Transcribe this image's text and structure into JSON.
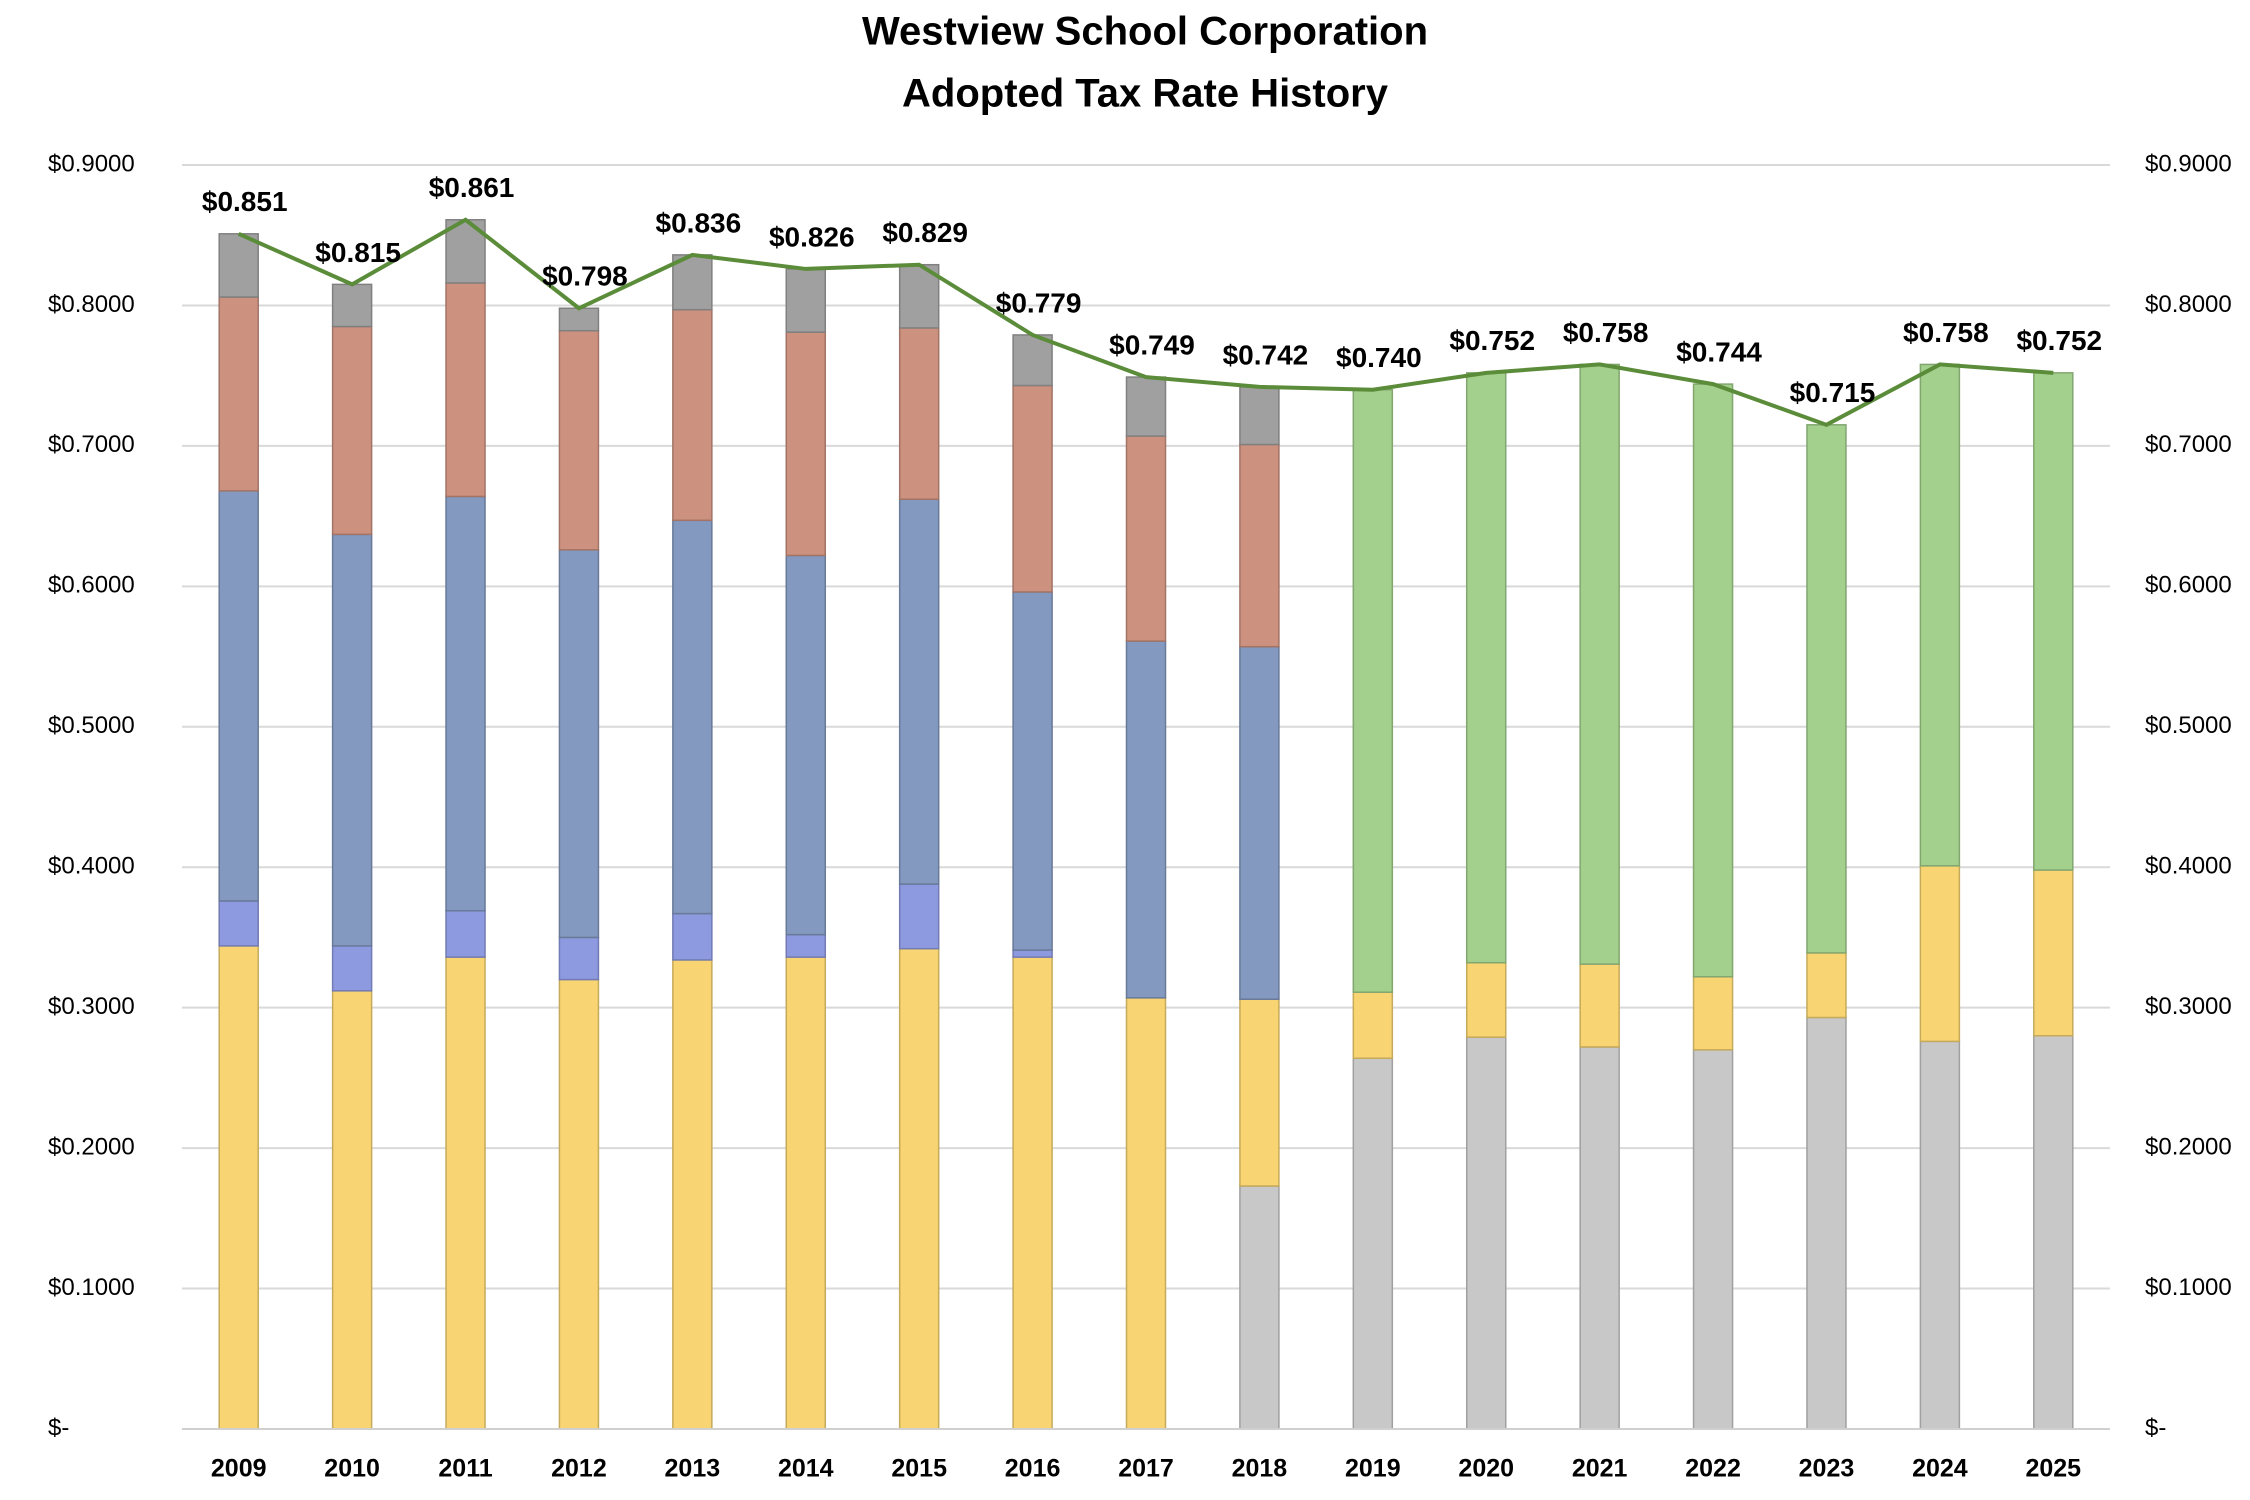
{
  "chart_data": {
    "type": "bar",
    "stacked": true,
    "title": "Westview School Corporation",
    "subtitle": "Adopted Tax Rate History",
    "categories": [
      "2009",
      "2010",
      "2011",
      "2012",
      "2013",
      "2014",
      "2015",
      "2016",
      "2017",
      "2018",
      "2019",
      "2020",
      "2021",
      "2022",
      "2023",
      "2024",
      "2025"
    ],
    "series": [
      {
        "color": "#c8c8c8",
        "values": [
          null,
          null,
          null,
          null,
          null,
          null,
          null,
          null,
          null,
          0.173,
          0.264,
          0.279,
          0.272,
          0.27,
          0.293,
          0.276,
          0.28
        ]
      },
      {
        "color": "#f8d572",
        "values": [
          0.344,
          0.312,
          0.336,
          0.32,
          0.334,
          0.336,
          0.342,
          0.336,
          0.307,
          0.133,
          0.047,
          0.053,
          0.059,
          0.052,
          0.046,
          0.125,
          0.118
        ]
      },
      {
        "color": "#8e9ae0",
        "values": [
          0.032,
          0.032,
          0.033,
          0.03,
          0.033,
          0.016,
          0.046,
          0.005,
          null,
          null,
          null,
          null,
          null,
          null,
          null,
          null,
          null
        ]
      },
      {
        "color": "#8399bf",
        "values": [
          0.292,
          0.293,
          0.295,
          0.276,
          0.28,
          0.27,
          0.274,
          0.255,
          0.254,
          0.251,
          null,
          null,
          null,
          null,
          null,
          null,
          null
        ]
      },
      {
        "color": "#cc917f",
        "values": [
          0.138,
          0.148,
          0.152,
          0.156,
          0.15,
          0.159,
          0.122,
          0.147,
          0.146,
          0.144,
          null,
          null,
          null,
          null,
          null,
          null,
          null
        ]
      },
      {
        "color": "#a0a0a0",
        "values": [
          0.045,
          0.03,
          0.045,
          0.016,
          0.039,
          0.045,
          0.045,
          0.036,
          0.042,
          0.041,
          null,
          null,
          null,
          null,
          null,
          null,
          null
        ]
      },
      {
        "color": "#a3d08c",
        "values": [
          null,
          null,
          null,
          null,
          null,
          null,
          null,
          null,
          null,
          null,
          0.429,
          0.42,
          0.427,
          0.422,
          0.376,
          0.357,
          0.354
        ]
      },
      {
        "type": "line",
        "color": "#5b8c3a",
        "values": [
          0.851,
          0.815,
          0.861,
          0.798,
          0.836,
          0.826,
          0.829,
          0.779,
          0.749,
          0.742,
          0.74,
          0.752,
          0.758,
          0.744,
          0.715,
          0.758,
          0.752
        ],
        "value_labels": [
          "$0.851",
          "$0.815",
          "$0.861",
          "$0.798",
          "$0.836",
          "$0.826",
          "$0.829",
          "$0.779",
          "$0.749",
          "$0.742",
          "$0.740",
          "$0.752",
          "$0.758",
          "$0.744",
          "$0.715",
          "$0.758",
          "$0.752"
        ]
      }
    ],
    "ylim": [
      0,
      0.9
    ],
    "yticks": [
      {
        "value": 0,
        "label": "$-"
      },
      {
        "value": 0.1,
        "label": "$0.1000"
      },
      {
        "value": 0.2,
        "label": "$0.2000"
      },
      {
        "value": 0.3,
        "label": "$0.3000"
      },
      {
        "value": 0.4,
        "label": "$0.4000"
      },
      {
        "value": 0.5,
        "label": "$0.5000"
      },
      {
        "value": 0.6,
        "label": "$0.6000"
      },
      {
        "value": 0.7,
        "label": "$0.7000"
      },
      {
        "value": 0.8,
        "label": "$0.8000"
      },
      {
        "value": 0.9,
        "label": "$0.9000"
      }
    ],
    "y2lim": [
      0,
      0.9
    ],
    "y2ticks": [
      {
        "value": 0,
        "label": "$-"
      },
      {
        "value": 0.1,
        "label": "$0.1000"
      },
      {
        "value": 0.2,
        "label": "$0.2000"
      },
      {
        "value": 0.3,
        "label": "$0.3000"
      },
      {
        "value": 0.4,
        "label": "$0.4000"
      },
      {
        "value": 0.5,
        "label": "$0.5000"
      },
      {
        "value": 0.6,
        "label": "$0.6000"
      },
      {
        "value": 0.7,
        "label": "$0.7000"
      },
      {
        "value": 0.8,
        "label": "$0.8000"
      },
      {
        "value": 0.9,
        "label": "$0.9000"
      }
    ],
    "grid": true
  }
}
